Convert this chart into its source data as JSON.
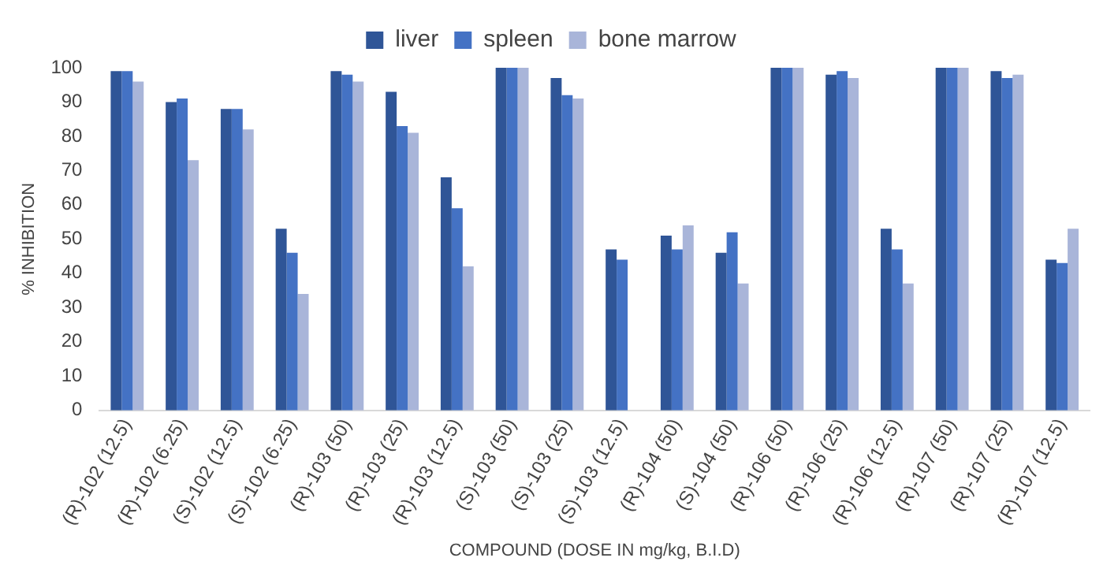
{
  "chart_data": {
    "type": "bar",
    "xlabel": "COMPOUND (DOSE IN mg/kg, B.I.D)",
    "ylabel": "% INHIBITION",
    "categories": [
      "(R)-102 (12.5)",
      "(R)-102 (6.25)",
      "(S)-102 (12.5)",
      "(S)-102 (6.25)",
      "(R)-103 (50)",
      "(R)-103 (25)",
      "(R)-103 (12.5)",
      "(S)-103 (50)",
      "(S)-103 (25)",
      "(S)-103 (12.5)",
      "(R)-104 (50)",
      "(S)-104 (50)",
      "(R)-106 (50)",
      "(R)-106 (25)",
      "(R)-106 (12.5)",
      "(R)-107 (50)",
      "(R)-107 (25)",
      "(R)-107 (12.5)"
    ],
    "series": [
      {
        "name": "liver",
        "color": "#2f5597",
        "values": [
          99,
          90,
          88,
          53,
          99,
          93,
          68,
          100,
          97,
          47,
          51,
          46,
          100,
          98,
          53,
          100,
          99,
          44
        ]
      },
      {
        "name": "spleen",
        "color": "#4472c4",
        "values": [
          99,
          91,
          88,
          46,
          98,
          83,
          59,
          100,
          92,
          44,
          47,
          52,
          100,
          99,
          47,
          100,
          97,
          43
        ]
      },
      {
        "name": "bone marrow",
        "color": "#a9b5d9",
        "values": [
          96,
          73,
          82,
          34,
          96,
          81,
          42,
          100,
          91,
          null,
          54,
          37,
          100,
          97,
          37,
          100,
          98,
          53
        ]
      }
    ],
    "ylim": [
      0,
      100
    ],
    "yticks": [
      0,
      10,
      20,
      30,
      40,
      50,
      60,
      70,
      80,
      90,
      100
    ],
    "grid": false,
    "legend": "top"
  }
}
